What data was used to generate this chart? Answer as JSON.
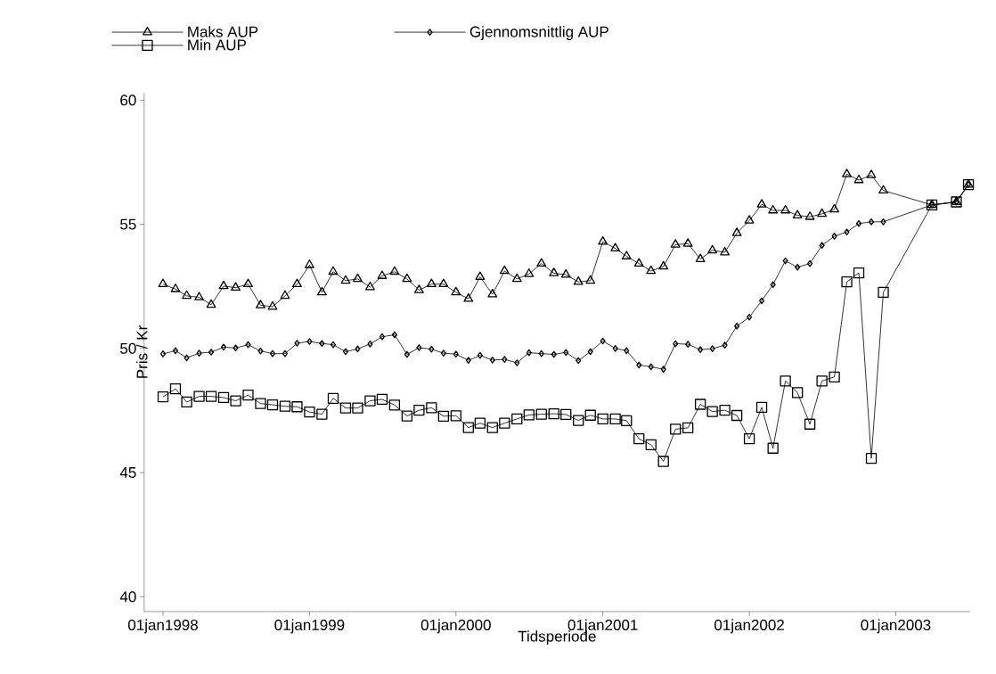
{
  "chart_data": {
    "type": "line",
    "xlabel": "Tidsperiode",
    "ylabel": "Pris / Kr",
    "x": [
      "1998-01",
      "1998-02",
      "1998-03",
      "1998-04",
      "1998-05",
      "1998-06",
      "1998-07",
      "1998-08",
      "1998-09",
      "1998-10",
      "1998-11",
      "1998-12",
      "1999-01",
      "1999-02",
      "1999-03",
      "1999-04",
      "1999-05",
      "1999-06",
      "1999-07",
      "1999-08",
      "1999-09",
      "1999-10",
      "1999-11",
      "1999-12",
      "2000-01",
      "2000-02",
      "2000-03",
      "2000-04",
      "2000-05",
      "2000-06",
      "2000-07",
      "2000-08",
      "2000-09",
      "2000-10",
      "2000-11",
      "2000-12",
      "2001-01",
      "2001-02",
      "2001-03",
      "2001-04",
      "2001-05",
      "2001-06",
      "2001-07",
      "2001-08",
      "2001-09",
      "2001-10",
      "2001-11",
      "2001-12",
      "2002-01",
      "2002-02",
      "2002-03",
      "2002-04",
      "2002-05",
      "2002-06",
      "2002-07",
      "2002-08",
      "2002-09",
      "2002-10",
      "2002-11",
      "2002-12",
      "2003-04",
      "2003-06",
      "2003-07"
    ],
    "series": [
      {
        "name": "Maks AUP",
        "color": "#000000",
        "marker": "triangle",
        "values": [
          52.59,
          52.39,
          52.12,
          52.06,
          51.76,
          52.51,
          52.45,
          52.59,
          51.74,
          51.68,
          52.12,
          52.59,
          53.36,
          52.26,
          53.09,
          52.73,
          52.8,
          52.47,
          52.92,
          53.09,
          52.8,
          52.35,
          52.59,
          52.59,
          52.26,
          52.0,
          52.88,
          52.18,
          53.12,
          52.8,
          53.0,
          53.42,
          53.03,
          52.97,
          52.68,
          52.73,
          54.3,
          54.03,
          53.71,
          53.42,
          53.12,
          53.3,
          54.18,
          54.22,
          53.6,
          53.95,
          53.87,
          54.65,
          55.15,
          55.8,
          55.56,
          55.56,
          55.36,
          55.3,
          55.42,
          55.6,
          57.02,
          56.78,
          56.98,
          56.36,
          55.78,
          55.9,
          56.6
        ]
      },
      {
        "name": "Gjennomsnittlig AUP",
        "color": "#000000",
        "marker": "diamond",
        "values": [
          49.78,
          49.91,
          49.62,
          49.81,
          49.85,
          50.05,
          50.02,
          50.15,
          49.9,
          49.79,
          49.79,
          50.21,
          50.28,
          50.2,
          50.15,
          49.87,
          49.98,
          50.18,
          50.47,
          50.55,
          49.76,
          50.03,
          49.97,
          49.81,
          49.77,
          49.52,
          49.72,
          49.53,
          49.56,
          49.42,
          49.83,
          49.79,
          49.76,
          49.84,
          49.51,
          49.87,
          50.3,
          50.0,
          49.91,
          49.33,
          49.26,
          49.16,
          50.19,
          50.17,
          49.95,
          49.99,
          50.13,
          50.9,
          51.26,
          51.92,
          52.57,
          53.53,
          53.27,
          53.42,
          54.15,
          54.52,
          54.69,
          55.03,
          55.1,
          55.1,
          55.78,
          55.9,
          56.6
        ]
      },
      {
        "name": "Min AUP",
        "color": "#000000",
        "marker": "square",
        "values": [
          48.05,
          48.37,
          47.84,
          48.07,
          48.07,
          48.02,
          47.89,
          48.12,
          47.78,
          47.73,
          47.67,
          47.65,
          47.44,
          47.35,
          47.99,
          47.6,
          47.6,
          47.89,
          47.95,
          47.72,
          47.28,
          47.51,
          47.61,
          47.27,
          47.29,
          46.81,
          46.99,
          46.81,
          46.99,
          47.16,
          47.32,
          47.35,
          47.37,
          47.34,
          47.1,
          47.31,
          47.16,
          47.16,
          47.09,
          46.36,
          46.12,
          45.45,
          46.75,
          46.8,
          47.75,
          47.46,
          47.51,
          47.3,
          46.36,
          47.63,
          45.98,
          48.69,
          48.22,
          46.95,
          48.69,
          48.85,
          52.68,
          53.04,
          45.57,
          52.26,
          55.78,
          55.9,
          56.6
        ]
      }
    ],
    "xlim": [
      "1997-11-15",
      "2003-07-05"
    ],
    "ylim": [
      39.4,
      60.3
    ],
    "xticks": [
      {
        "value": "1998-01-01",
        "label": "01jan1998"
      },
      {
        "value": "1999-01-01",
        "label": "01jan1999"
      },
      {
        "value": "2000-01-01",
        "label": "01jan2000"
      },
      {
        "value": "2001-01-01",
        "label": "01jan2001"
      },
      {
        "value": "2002-01-01",
        "label": "01jan2002"
      },
      {
        "value": "2003-01-01",
        "label": "01jan2003"
      }
    ],
    "yticks": [
      40,
      45,
      50,
      55,
      60
    ],
    "legend": "top"
  }
}
